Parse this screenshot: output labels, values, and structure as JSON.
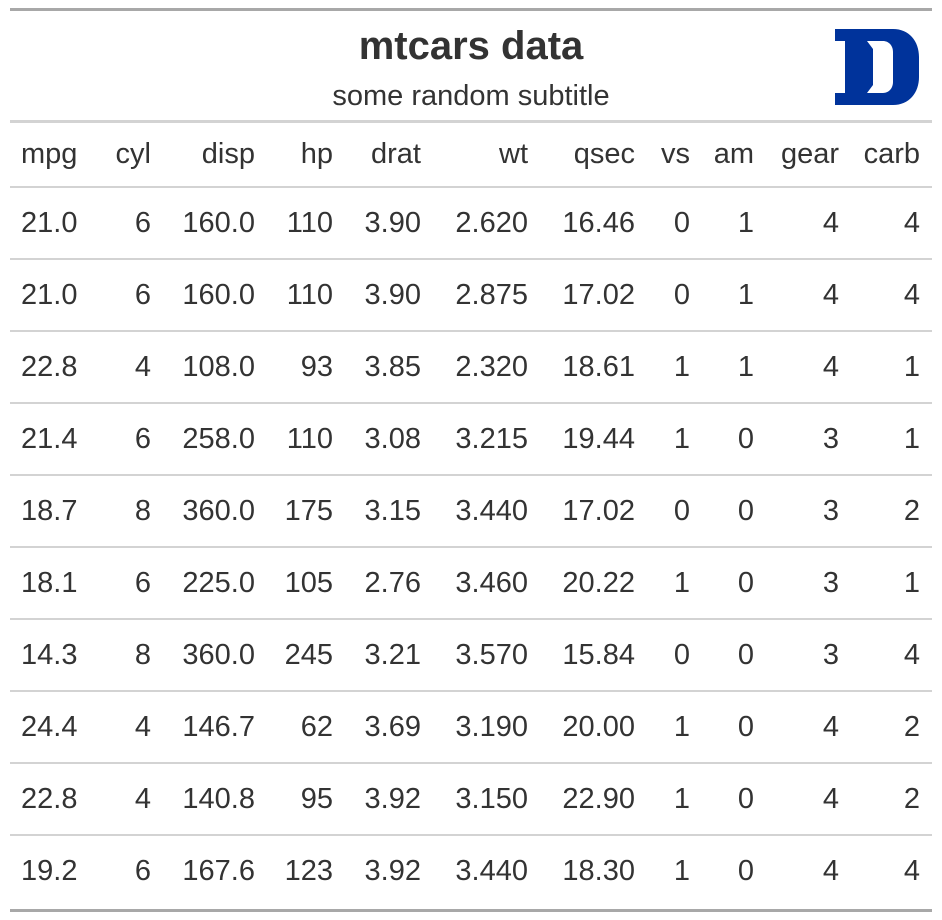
{
  "header": {
    "title": "mtcars data",
    "subtitle": "some random subtitle",
    "logo_icon": "duke-d-logo",
    "logo_color": "#00339B"
  },
  "table": {
    "columns": [
      "mpg",
      "cyl",
      "disp",
      "hp",
      "drat",
      "wt",
      "qsec",
      "vs",
      "am",
      "gear",
      "carb"
    ],
    "rows": [
      [
        "21.0",
        "6",
        "160.0",
        "110",
        "3.90",
        "2.620",
        "16.46",
        "0",
        "1",
        "4",
        "4"
      ],
      [
        "21.0",
        "6",
        "160.0",
        "110",
        "3.90",
        "2.875",
        "17.02",
        "0",
        "1",
        "4",
        "4"
      ],
      [
        "22.8",
        "4",
        "108.0",
        "93",
        "3.85",
        "2.320",
        "18.61",
        "1",
        "1",
        "4",
        "1"
      ],
      [
        "21.4",
        "6",
        "258.0",
        "110",
        "3.08",
        "3.215",
        "19.44",
        "1",
        "0",
        "3",
        "1"
      ],
      [
        "18.7",
        "8",
        "360.0",
        "175",
        "3.15",
        "3.440",
        "17.02",
        "0",
        "0",
        "3",
        "2"
      ],
      [
        "18.1",
        "6",
        "225.0",
        "105",
        "2.76",
        "3.460",
        "20.22",
        "1",
        "0",
        "3",
        "1"
      ],
      [
        "14.3",
        "8",
        "360.0",
        "245",
        "3.21",
        "3.570",
        "15.84",
        "0",
        "0",
        "3",
        "4"
      ],
      [
        "24.4",
        "4",
        "146.7",
        "62",
        "3.69",
        "3.190",
        "20.00",
        "1",
        "0",
        "4",
        "2"
      ],
      [
        "22.8",
        "4",
        "140.8",
        "95",
        "3.92",
        "3.150",
        "22.90",
        "1",
        "0",
        "4",
        "2"
      ],
      [
        "19.2",
        "6",
        "167.6",
        "123",
        "3.92",
        "3.440",
        "18.30",
        "1",
        "0",
        "4",
        "4"
      ]
    ]
  }
}
